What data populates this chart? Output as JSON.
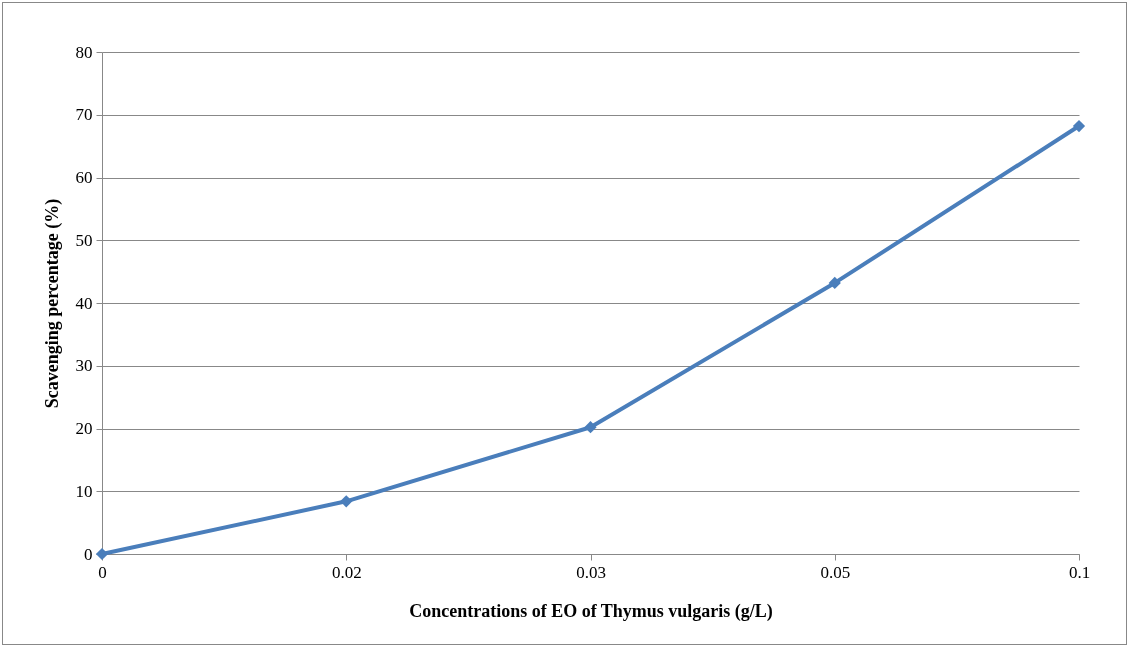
{
  "chart_data": {
    "type": "line",
    "xlabel": "Concentrations of EO of Thymus vulgaris (g/L)",
    "ylabel": "Scavenging percentage (%)",
    "categories": [
      "0",
      "0.02",
      "0.03",
      "0.05",
      "0.1"
    ],
    "series": [
      {
        "color": "#4a7ebb",
        "values": [
          0,
          8.4,
          20.2,
          43.2,
          68.2
        ]
      }
    ],
    "ylim": [
      0,
      80
    ],
    "yticks": [
      0,
      10,
      20,
      30,
      40,
      50,
      60,
      70,
      80
    ],
    "grid": "y",
    "marker": "diamond",
    "line_style": "solid"
  }
}
